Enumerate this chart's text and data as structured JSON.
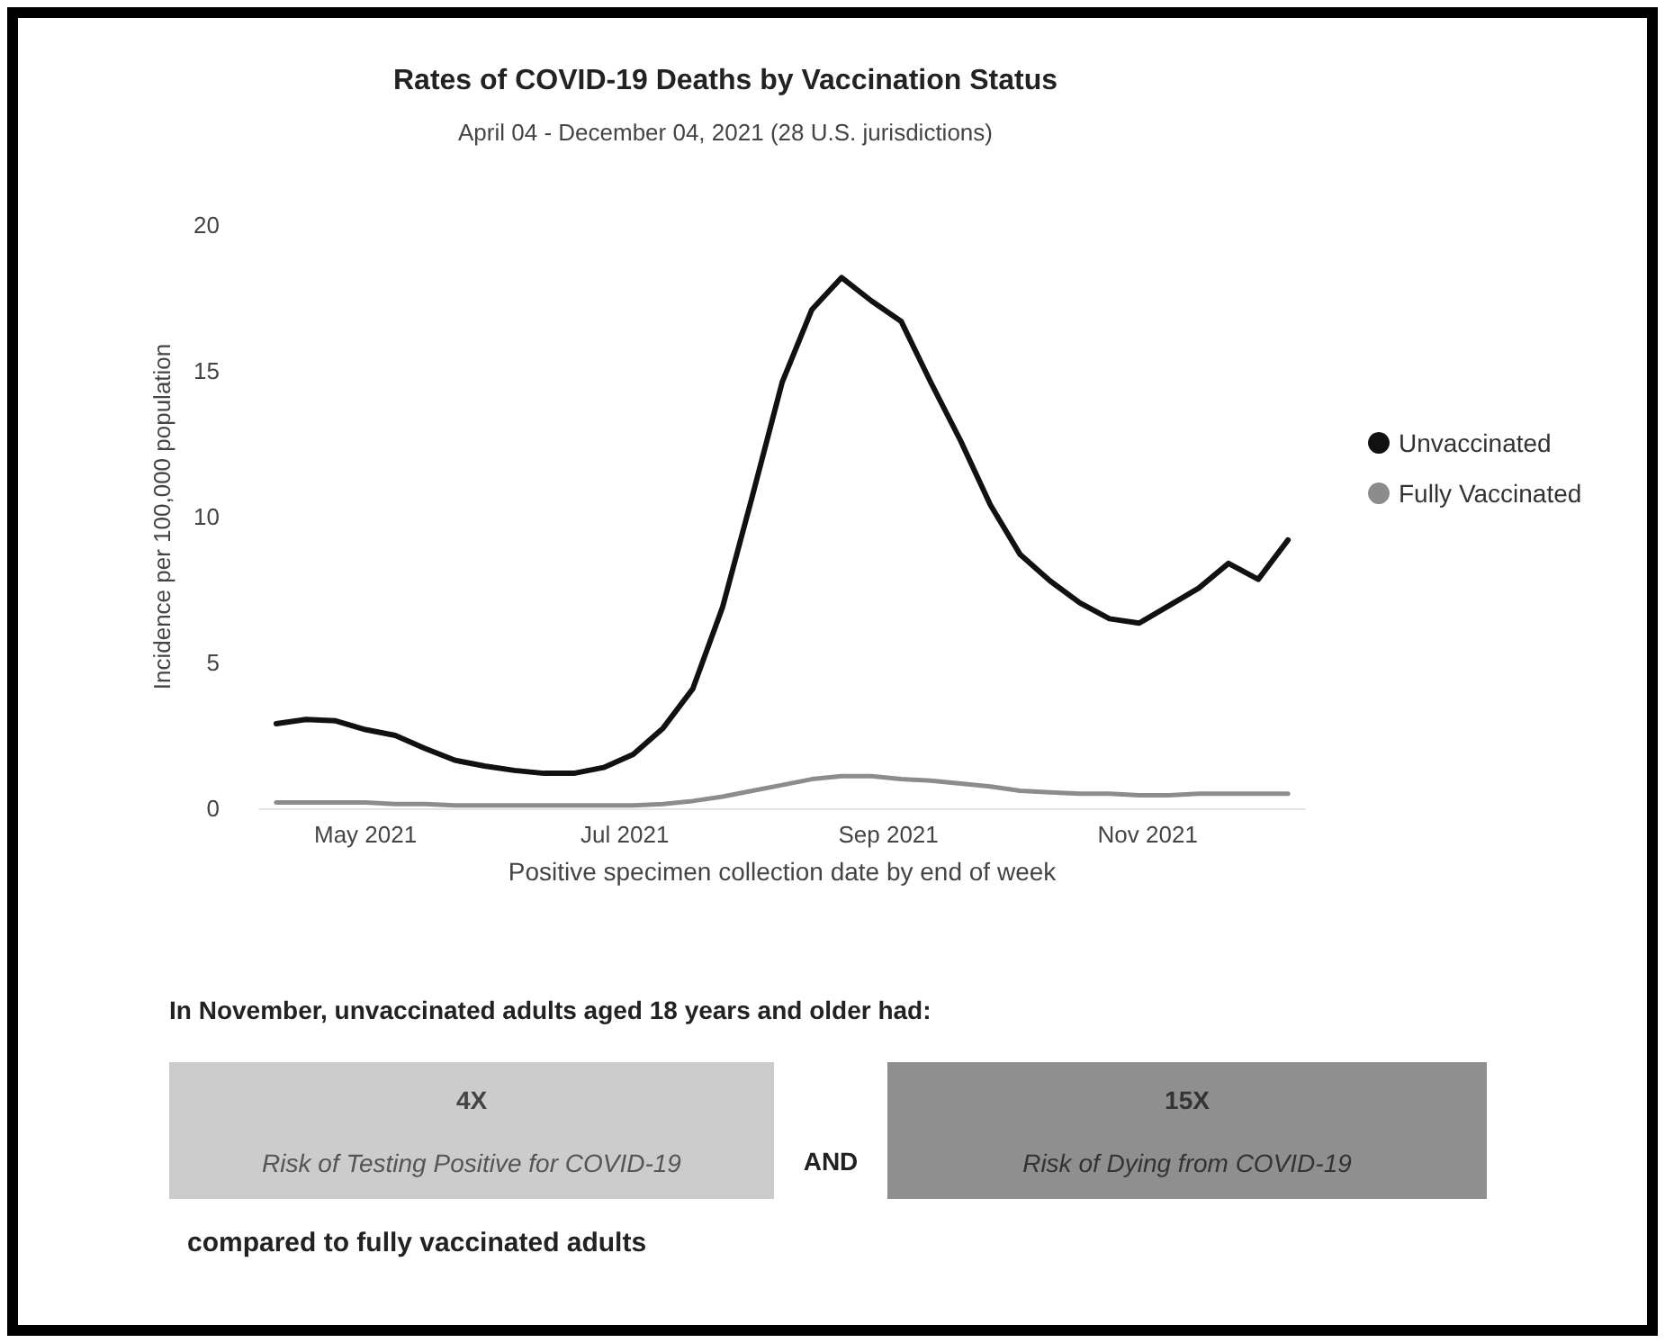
{
  "chart_data": {
    "type": "line",
    "title": "Rates of COVID-19 Deaths by Vaccination Status",
    "subtitle": "April 04 - December 04, 2021 (28 U.S. jurisdictions)",
    "xlabel": "Positive specimen collection date by end of week",
    "ylabel": "Incidence per 100,000 population",
    "x": [
      "2021-04-10",
      "2021-04-17",
      "2021-04-24",
      "2021-05-01",
      "2021-05-08",
      "2021-05-15",
      "2021-05-22",
      "2021-05-29",
      "2021-06-05",
      "2021-06-12",
      "2021-06-19",
      "2021-06-26",
      "2021-07-03",
      "2021-07-10",
      "2021-07-17",
      "2021-07-24",
      "2021-07-31",
      "2021-08-07",
      "2021-08-14",
      "2021-08-21",
      "2021-08-28",
      "2021-09-04",
      "2021-09-11",
      "2021-09-18",
      "2021-09-25",
      "2021-10-02",
      "2021-10-09",
      "2021-10-16",
      "2021-10-23",
      "2021-10-30",
      "2021-11-06",
      "2021-11-13",
      "2021-11-20",
      "2021-11-27",
      "2021-12-04"
    ],
    "series": [
      {
        "name": "Unvaccinated",
        "color": "#111111",
        "values": [
          2.9,
          3.05,
          3.0,
          2.7,
          2.5,
          2.05,
          1.65,
          1.45,
          1.3,
          1.2,
          1.2,
          1.4,
          1.85,
          2.75,
          4.1,
          6.9,
          10.7,
          14.6,
          17.1,
          18.2,
          17.4,
          16.7,
          14.6,
          12.6,
          10.4,
          8.7,
          7.8,
          7.05,
          6.5,
          6.35,
          6.95,
          7.55,
          8.4,
          7.85,
          9.2
        ]
      },
      {
        "name": "Fully Vaccinated",
        "color": "#8c8c8c",
        "values": [
          0.2,
          0.2,
          0.2,
          0.2,
          0.15,
          0.15,
          0.1,
          0.1,
          0.1,
          0.1,
          0.1,
          0.1,
          0.1,
          0.15,
          0.25,
          0.4,
          0.6,
          0.8,
          1.0,
          1.1,
          1.1,
          1.0,
          0.95,
          0.85,
          0.75,
          0.6,
          0.55,
          0.5,
          0.5,
          0.45,
          0.45,
          0.5,
          0.5,
          0.5,
          0.5
        ]
      }
    ],
    "xlim": [
      "2021-04-06",
      "2021-12-08"
    ],
    "xticks": [
      {
        "value": "2021-05-01",
        "label": "May 2021"
      },
      {
        "value": "2021-07-01",
        "label": "Jul 2021"
      },
      {
        "value": "2021-09-01",
        "label": "Sep 2021"
      },
      {
        "value": "2021-11-01",
        "label": "Nov 2021"
      }
    ],
    "ylim": [
      0,
      20
    ],
    "yticks": [
      0,
      5,
      10,
      15,
      20
    ],
    "grid": false,
    "legend": "right",
    "marker": "none",
    "line_style": "solid",
    "annotations": [
      "In November, unvaccinated adults aged 18 years and older had:",
      "4X",
      "Risk of Testing Positive for COVID-19",
      "AND",
      "15X",
      "Risk of Dying from COVID-19",
      "compared to fully vaccinated adults"
    ]
  }
}
